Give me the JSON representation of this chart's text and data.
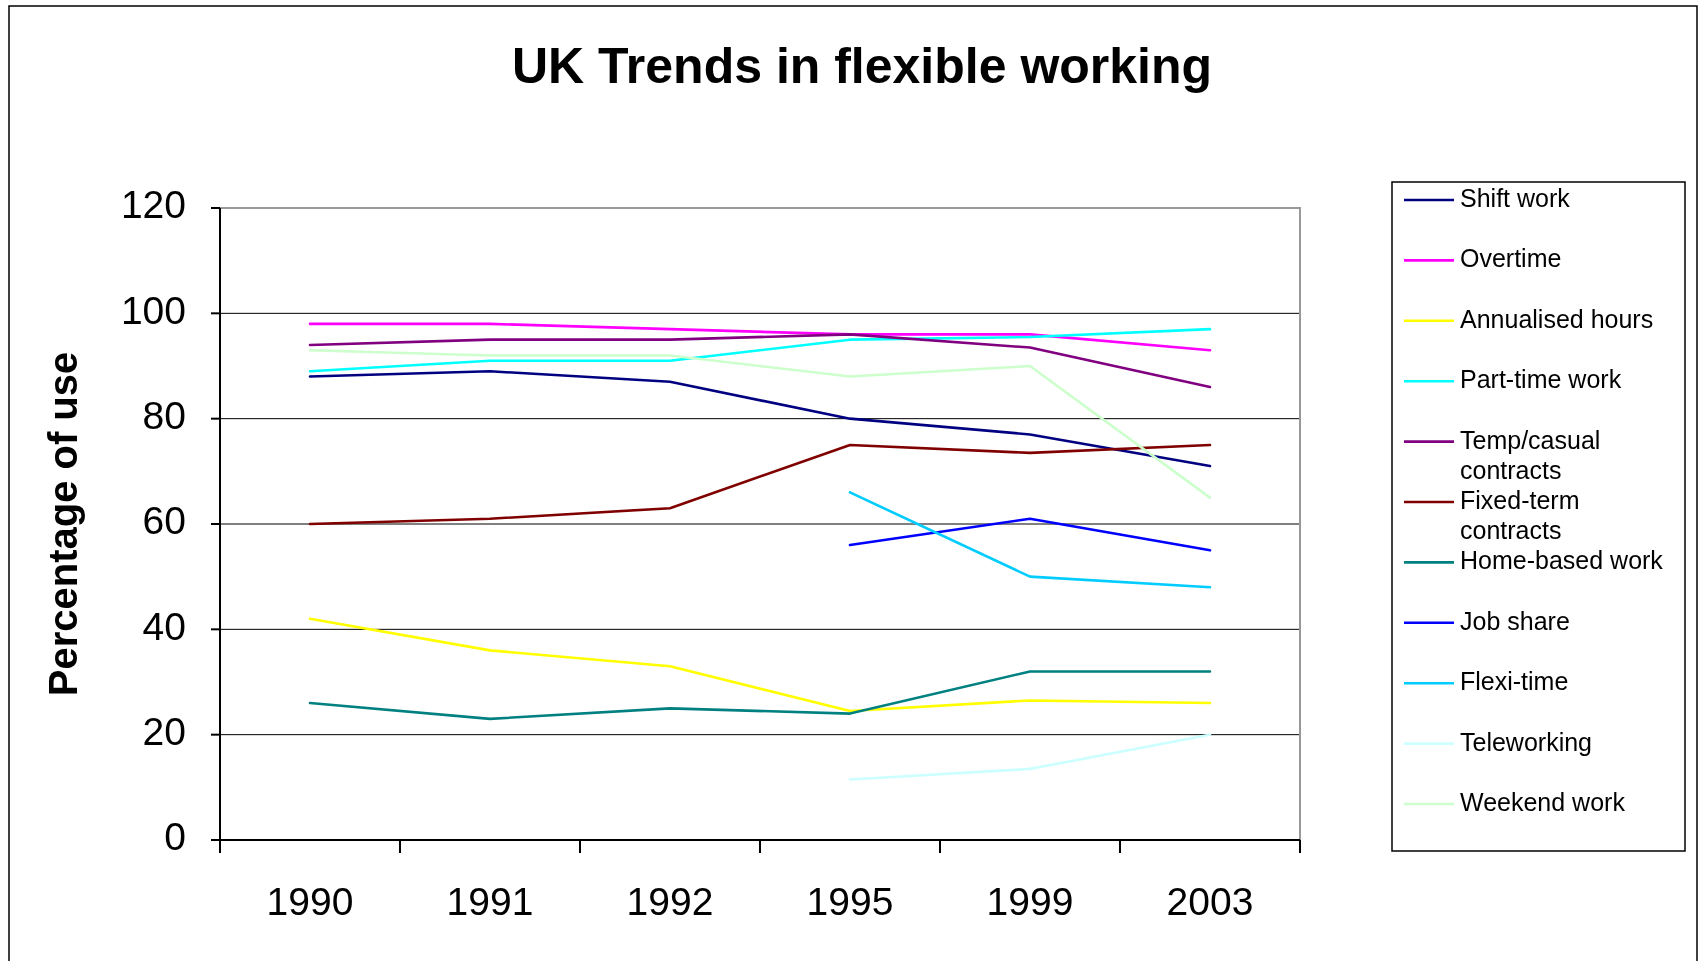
{
  "chart_data": {
    "type": "line",
    "title": "UK Trends in flexible working",
    "ylabel": "Percentage of use",
    "categories": [
      "1990",
      "1991",
      "1992",
      "1995",
      "1999",
      "2003"
    ],
    "ylim": [
      0,
      120
    ],
    "yticks": [
      0,
      20,
      40,
      60,
      80,
      100,
      120
    ],
    "grid": "y",
    "legend": "right",
    "marker": "none",
    "line_style": "solid",
    "series": [
      {
        "name": "Shift work",
        "color": "#000080",
        "values": [
          88,
          89,
          87,
          80,
          77,
          71
        ]
      },
      {
        "name": "Overtime",
        "color": "#ff00ff",
        "values": [
          98,
          98,
          97,
          96,
          96,
          93
        ]
      },
      {
        "name": "Annualised hours",
        "color": "#ffff00",
        "values": [
          42,
          36,
          33,
          24.5,
          26.5,
          26
        ]
      },
      {
        "name": "Part-time work",
        "color": "#00ffff",
        "values": [
          89,
          91,
          91,
          95,
          95.5,
          97
        ]
      },
      {
        "name": "Temp/casual contracts",
        "color": "#800080",
        "values": [
          94,
          95,
          95,
          96,
          93.5,
          86
        ]
      },
      {
        "name": "Fixed-term contracts",
        "color": "#800000",
        "values": [
          60,
          61,
          63,
          75,
          73.5,
          75
        ]
      },
      {
        "name": "Home-based work",
        "color": "#008080",
        "values": [
          26,
          23,
          25,
          24,
          32,
          32
        ]
      },
      {
        "name": "Job share",
        "color": "#0000ff",
        "values": [
          null,
          null,
          null,
          56,
          61,
          55
        ]
      },
      {
        "name": "Flexi-time",
        "color": "#00ccff",
        "values": [
          null,
          null,
          null,
          66,
          50,
          48
        ]
      },
      {
        "name": "Teleworking",
        "color": "#ccffff",
        "values": [
          null,
          null,
          null,
          11.5,
          13.5,
          20
        ]
      },
      {
        "name": "Weekend work",
        "color": "#ccffcc",
        "values": [
          93,
          92,
          92,
          88,
          90,
          65
        ]
      }
    ]
  }
}
